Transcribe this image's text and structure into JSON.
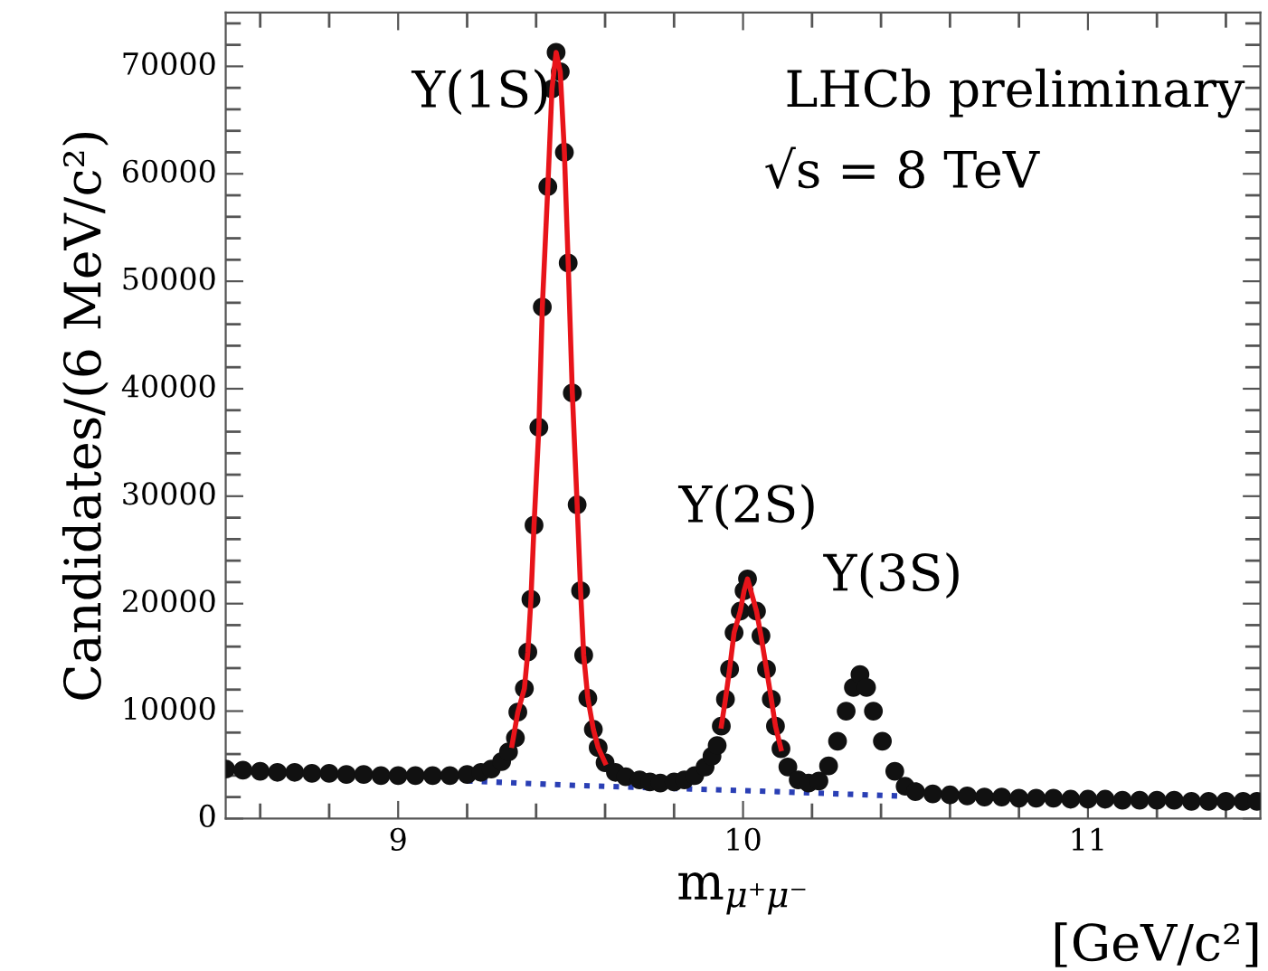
{
  "chart_data": {
    "type": "scatter",
    "xlabel": "m$_{μ⁺μ⁻}$",
    "ylabel": "Candidates/(6 MeV/c²)",
    "xlim": [
      8.5,
      11.5
    ],
    "xticks": [
      9,
      10,
      11
    ],
    "ylim": [
      0,
      75000
    ],
    "yticks": [
      0,
      10000,
      20000,
      30000,
      40000,
      50000,
      60000,
      70000
    ],
    "grid": false,
    "legend": false,
    "annotations": [
      "Υ(1S)",
      "Υ(2S)",
      "Υ(3S)",
      "LHCb preliminary",
      "√s = 8 TeV",
      "[GeV/c²]"
    ],
    "series": [
      {
        "marker": "circle",
        "color": "#111111",
        "x": [
          8.5,
          8.55,
          8.6,
          8.65,
          8.7,
          8.75,
          8.8,
          8.85,
          8.9,
          8.95,
          9.0,
          9.05,
          9.1,
          9.15,
          9.2,
          9.24,
          9.27,
          9.3,
          9.32,
          9.34,
          9.347,
          9.366,
          9.376,
          9.385,
          9.394,
          9.408,
          9.418,
          9.434,
          9.446,
          9.458,
          9.47,
          9.482,
          9.493,
          9.505,
          9.519,
          9.529,
          9.538,
          9.55,
          9.566,
          9.58,
          9.6,
          9.63,
          9.66,
          9.7,
          9.73,
          9.76,
          9.8,
          9.83,
          9.86,
          9.89,
          9.91,
          9.925,
          9.937,
          9.949,
          9.961,
          9.974,
          9.992,
          10.003,
          10.013,
          10.039,
          10.052,
          10.068,
          10.082,
          10.094,
          10.11,
          10.13,
          10.16,
          10.19,
          10.22,
          10.248,
          10.274,
          10.299,
          10.32,
          10.339,
          10.358,
          10.378,
          10.404,
          10.44,
          10.47,
          10.5,
          10.55,
          10.6,
          10.65,
          10.7,
          10.75,
          10.8,
          10.85,
          10.9,
          10.95,
          11.0,
          11.05,
          11.1,
          11.15,
          11.2,
          11.25,
          11.3,
          11.35,
          11.4,
          11.45,
          11.49
        ],
        "values": [
          4600,
          4500,
          4400,
          4300,
          4300,
          4200,
          4200,
          4100,
          4100,
          4000,
          4000,
          4000,
          4000,
          4000,
          4100,
          4300,
          4600,
          5300,
          6200,
          7500,
          9900,
          12100,
          15500,
          20400,
          27300,
          36400,
          47600,
          58800,
          67900,
          71300,
          69500,
          62000,
          51700,
          39600,
          29200,
          21200,
          15200,
          11200,
          8300,
          6600,
          5200,
          4300,
          3900,
          3600,
          3400,
          3300,
          3400,
          3600,
          4000,
          4800,
          5800,
          6800,
          8600,
          11100,
          13900,
          17300,
          19300,
          21200,
          22300,
          19300,
          17000,
          13900,
          11100,
          8600,
          6500,
          4800,
          3600,
          3300,
          3500,
          4900,
          7200,
          10000,
          12200,
          13400,
          12200,
          10000,
          7200,
          4400,
          3000,
          2500,
          2300,
          2200,
          2100,
          2000,
          2000,
          1900,
          1900,
          1900,
          1800,
          1800,
          1800,
          1700,
          1700,
          1700,
          1700,
          1600,
          1600,
          1600,
          1600,
          1600
        ]
      },
      {
        "type": "line",
        "color": "#e8141a",
        "x": [
          9.33,
          9.347,
          9.366,
          9.376,
          9.385,
          9.394,
          9.408,
          9.418,
          9.434,
          9.446,
          9.458,
          9.47,
          9.482,
          9.493,
          9.505,
          9.519,
          9.529,
          9.538,
          9.55,
          9.566,
          9.58,
          9.6,
          9.92,
          9.937,
          9.949,
          9.961,
          9.974,
          9.992,
          10.003,
          10.013,
          10.039,
          10.052,
          10.068,
          10.082,
          10.094,
          10.11
        ],
        "values": [
          6800,
          9900,
          12100,
          15500,
          20400,
          27300,
          36400,
          47600,
          58800,
          67900,
          71300,
          69500,
          62000,
          51700,
          39600,
          29200,
          21200,
          15200,
          11200,
          8300,
          6600,
          5200,
          null,
          8600,
          11100,
          13900,
          17300,
          19300,
          21200,
          22300,
          19300,
          17000,
          13900,
          11100,
          8600,
          6500
        ]
      },
      {
        "type": "line",
        "color": "#2a3fb5",
        "line_style": "dotted",
        "x": [
          9.2,
          9.5,
          9.8,
          10.1,
          10.45
        ],
        "values": [
          3500,
          3100,
          2800,
          2500,
          2100
        ]
      }
    ]
  }
}
